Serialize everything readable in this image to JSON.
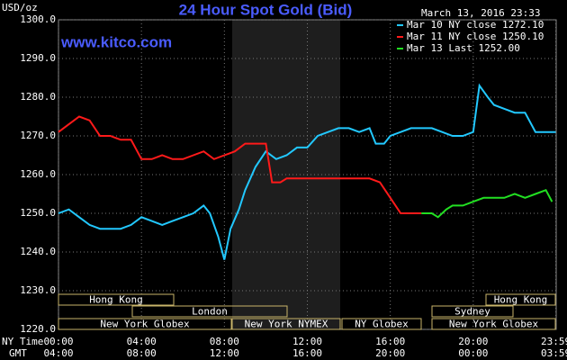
{
  "chart_data": {
    "type": "line",
    "title": "24 Hour Spot Gold (Bid)",
    "y_label": "USD/oz",
    "watermark": "www.kitco.com",
    "timestamp": "March 13, 2016 23:33",
    "x_label": "NY Time",
    "x2_label": "GMT",
    "xlim": [
      0,
      24
    ],
    "xticks": [
      {
        "value": 0,
        "label": "00:00"
      },
      {
        "value": 4,
        "label": "04:00"
      },
      {
        "value": 8,
        "label": "08:00"
      },
      {
        "value": 12,
        "label": "12:00"
      },
      {
        "value": 16,
        "label": "16:00"
      },
      {
        "value": 20,
        "label": "20:00"
      },
      {
        "value": 23.98,
        "label": "23:59"
      }
    ],
    "x2ticks": [
      "04:00",
      "08:00",
      "12:00",
      "16:00",
      "20:00",
      "00:00",
      "03:59"
    ],
    "ylim": [
      1220,
      1300
    ],
    "yticks": [
      {
        "value": 1220,
        "label": "1220.0"
      },
      {
        "value": 1230,
        "label": "1230.0"
      },
      {
        "value": 1240,
        "label": "1240.0"
      },
      {
        "value": 1250,
        "label": "1250.0"
      },
      {
        "value": 1260,
        "label": "1260.0"
      },
      {
        "value": 1270,
        "label": "1270.0"
      },
      {
        "value": 1280,
        "label": "1280.0"
      },
      {
        "value": 1290,
        "label": "1290.0"
      },
      {
        "value": 1300,
        "label": "1300.0"
      }
    ],
    "grid": true,
    "sessions": [
      "Hong Kong",
      "London",
      "New York Globex",
      "New York NYMEX",
      "NY Globex",
      "Hong Kong",
      "Sydney",
      "New York Globex"
    ],
    "series": [
      {
        "name": "Mar 10 NY close 1272.10",
        "color": "#22c8ff",
        "x": [
          0,
          0.5,
          1,
          1.5,
          2,
          2.5,
          3,
          3.5,
          4,
          4.5,
          5,
          5.5,
          6,
          6.5,
          7,
          7.3,
          7.7,
          8,
          8.3,
          8.7,
          9,
          9.5,
          10,
          10.5,
          11,
          11.5,
          12,
          12.5,
          13,
          13.5,
          14,
          14.5,
          15,
          15.3,
          15.7,
          16,
          16.5,
          17,
          18,
          18.5,
          19,
          19.5,
          20,
          20.3,
          20.7,
          21,
          21.5,
          22,
          22.5,
          23,
          23.98
        ],
        "values": [
          1250,
          1251,
          1249,
          1247,
          1246,
          1246,
          1246,
          1247,
          1249,
          1248,
          1247,
          1248,
          1249,
          1250,
          1252,
          1250,
          1244,
          1238,
          1246,
          1251,
          1256,
          1262,
          1266,
          1264,
          1265,
          1267,
          1267,
          1270,
          1271,
          1272,
          1272,
          1271,
          1272,
          1268,
          1268,
          1270,
          1271,
          1272,
          1272,
          1271,
          1270,
          1270,
          1271,
          1283,
          1280,
          1278,
          1277,
          1276,
          1276,
          1271,
          1271
        ]
      },
      {
        "name": "Mar 11 NY close 1250.10",
        "color": "#ff1a1a",
        "x": [
          0,
          0.5,
          1,
          1.5,
          2,
          2.5,
          3,
          3.5,
          4,
          4.5,
          5,
          5.5,
          6,
          6.5,
          7,
          7.5,
          8,
          8.5,
          9,
          9.5,
          10,
          10.3,
          10.7,
          11,
          12,
          13,
          14,
          15,
          15.5,
          16,
          16.5,
          17,
          17.5
        ],
        "values": [
          1271,
          1273,
          1275,
          1274,
          1270,
          1270,
          1269,
          1269,
          1264,
          1264,
          1265,
          1264,
          1264,
          1265,
          1266,
          1264,
          1265,
          1266,
          1268,
          1268,
          1268,
          1258,
          1258,
          1259,
          1259,
          1259,
          1259,
          1259,
          1258,
          1254,
          1250,
          1250,
          1250
        ]
      },
      {
        "name": "Mar 13 Last 1252.00",
        "color": "#22e022",
        "x": [
          17.5,
          18,
          18.3,
          18.7,
          19,
          19.5,
          20,
          20.5,
          21,
          21.5,
          22,
          22.5,
          23,
          23.5,
          23.8
        ],
        "values": [
          1250,
          1250,
          1249,
          1251,
          1252,
          1252,
          1253,
          1254,
          1254,
          1254,
          1255,
          1254,
          1255,
          1256,
          1253
        ]
      }
    ]
  }
}
